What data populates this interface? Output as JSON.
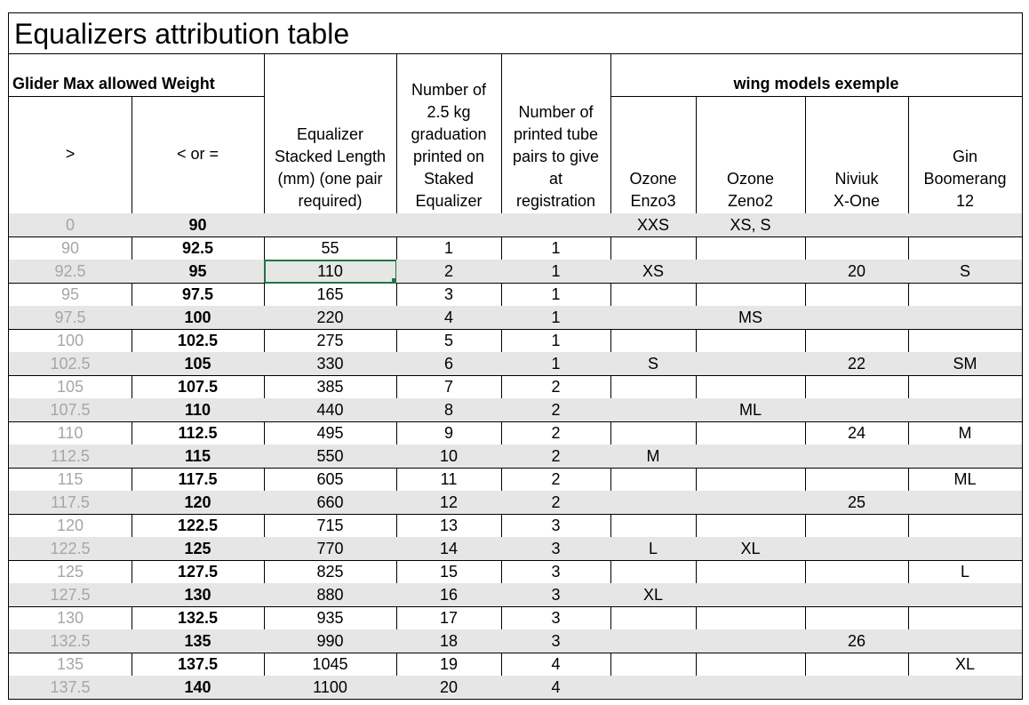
{
  "title": "Equalizers attribution table",
  "header": {
    "weight_group": "Glider Max allowed Weight",
    "wing_group": "wing models exemple",
    "columns": [
      ">",
      "< or =",
      "Equalizer\nStacked Length\n(mm)  (one pair\nrequired)",
      "Number of\n2.5 kg\ngraduation\nprinted on\nStaked\nEqualizer",
      "Number of\nprinted tube\npairs to give\nat\nregistration",
      "Ozone\nEnzo3",
      "Ozone\nZeno2",
      "Niviuk\nX-One",
      "Gin\nBoomerang\n12"
    ]
  },
  "table": {
    "rows": [
      [
        0,
        90,
        null,
        null,
        null,
        "XXS",
        "XS, S",
        null,
        null
      ],
      [
        90,
        92.5,
        55,
        1,
        1,
        null,
        null,
        null,
        null
      ],
      [
        92.5,
        95,
        110,
        2,
        1,
        "XS",
        null,
        20,
        "S"
      ],
      [
        95,
        97.5,
        165,
        3,
        1,
        null,
        null,
        null,
        null
      ],
      [
        97.5,
        100,
        220,
        4,
        1,
        null,
        "MS",
        null,
        null
      ],
      [
        100,
        102.5,
        275,
        5,
        1,
        null,
        null,
        null,
        null
      ],
      [
        102.5,
        105,
        330,
        6,
        1,
        "S",
        null,
        22,
        "SM"
      ],
      [
        105,
        107.5,
        385,
        7,
        2,
        null,
        null,
        null,
        null
      ],
      [
        107.5,
        110,
        440,
        8,
        2,
        null,
        "ML",
        null,
        null
      ],
      [
        110,
        112.5,
        495,
        9,
        2,
        null,
        null,
        24,
        "M"
      ],
      [
        112.5,
        115,
        550,
        10,
        2,
        "M",
        null,
        null,
        null
      ],
      [
        115,
        117.5,
        605,
        11,
        2,
        null,
        null,
        null,
        "ML"
      ],
      [
        117.5,
        120,
        660,
        12,
        2,
        null,
        null,
        25,
        null
      ],
      [
        120,
        122.5,
        715,
        13,
        3,
        null,
        null,
        null,
        null
      ],
      [
        122.5,
        125,
        770,
        14,
        3,
        "L",
        "XL",
        null,
        null
      ],
      [
        125,
        127.5,
        825,
        15,
        3,
        null,
        null,
        null,
        "L"
      ],
      [
        127.5,
        130,
        880,
        16,
        3,
        "XL",
        null,
        null,
        null
      ],
      [
        130,
        132.5,
        935,
        17,
        3,
        null,
        null,
        null,
        null
      ],
      [
        132.5,
        135,
        990,
        18,
        3,
        null,
        null,
        26,
        null
      ],
      [
        135,
        137.5,
        1045,
        19,
        4,
        null,
        null,
        null,
        "XL"
      ],
      [
        137.5,
        140,
        1100,
        20,
        4,
        null,
        null,
        null,
        null
      ]
    ]
  }
}
